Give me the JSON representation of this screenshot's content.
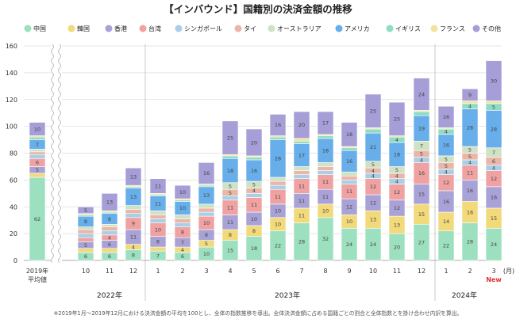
{
  "chart_data": {
    "type": "bar",
    "stacked": true,
    "title": "【インバウンド】国籍別の決済金額の推移",
    "ylim": [
      0,
      160
    ],
    "yticks": [
      0,
      20,
      40,
      60,
      80,
      100,
      120,
      140,
      160
    ],
    "grid": true,
    "legend_position": "top",
    "categories": [
      "2019年\n平均値",
      "10",
      "11",
      "12",
      "1",
      "2",
      "3",
      "4",
      "5",
      "6",
      "7",
      "8",
      "9",
      "10",
      "11",
      "12",
      "1",
      "2",
      "3"
    ],
    "category_labels": [
      "",
      "10",
      "11",
      "12",
      "1",
      "2",
      "3",
      "4",
      "5",
      "6",
      "7",
      "8",
      "9",
      "10",
      "11",
      "12",
      "1",
      "2",
      "3"
    ],
    "baseline_label_lines": [
      "2019年",
      "平均値"
    ],
    "month_unit": "(月)",
    "year_labels": [
      "2022年",
      "2023年",
      "2024年"
    ],
    "new_marker": "New",
    "series": [
      {
        "name": "中国",
        "color": "#9de0c0",
        "values": [
          62,
          6,
          6,
          8,
          7,
          6,
          10,
          15,
          18,
          22,
          28,
          32,
          24,
          24,
          20,
          27,
          22,
          28,
          24
        ]
      },
      {
        "name": "韓国",
        "color": "#f2d97a",
        "values": [
          3,
          3,
          3,
          4,
          3,
          4,
          5,
          8,
          8,
          10,
          11,
          10,
          10,
          13,
          13,
          15,
          14,
          16,
          15
        ]
      },
      {
        "name": "香港",
        "color": "#a9a2d6",
        "values": [
          5,
          5,
          6,
          11,
          8,
          7,
          8,
          11,
          10,
          10,
          11,
          11,
          12,
          12,
          12,
          15,
          16,
          16,
          16
        ]
      },
      {
        "name": "台湾",
        "color": "#f0a2a2",
        "values": [
          6,
          3,
          4,
          9,
          10,
          8,
          10,
          11,
          11,
          11,
          11,
          11,
          11,
          12,
          12,
          16,
          12,
          11,
          12
        ]
      },
      {
        "name": "シンガポール",
        "color": "#a9cfe6",
        "values": [
          3,
          3,
          3,
          3,
          3,
          3,
          3,
          3,
          3,
          3,
          3,
          3,
          3,
          4,
          4,
          4,
          4,
          4,
          4
        ]
      },
      {
        "name": "タイ",
        "color": "#e9b6a8",
        "values": [
          2,
          3,
          3,
          3,
          3,
          3,
          3,
          5,
          4,
          3,
          3,
          3,
          3,
          4,
          4,
          5,
          5,
          5,
          6
        ]
      },
      {
        "name": "オーストラリア",
        "color": "#cfe2c4",
        "values": [
          2,
          2,
          2,
          3,
          3,
          3,
          3,
          5,
          5,
          3,
          3,
          3,
          3,
          5,
          5,
          7,
          5,
          5,
          7
        ]
      },
      {
        "name": "アメリカ",
        "color": "#67aeea",
        "values": [
          7,
          8,
          8,
          13,
          11,
          10,
          13,
          18,
          16,
          28,
          17,
          18,
          16,
          21,
          18,
          19,
          16,
          28,
          28
        ]
      },
      {
        "name": "イギリス",
        "color": "#8fdcc4",
        "values": [
          2,
          1,
          1,
          1,
          1,
          1,
          1,
          2,
          2,
          2,
          2,
          2,
          2,
          3,
          4,
          3,
          4,
          4,
          5
        ]
      },
      {
        "name": "フランス",
        "color": "#f4e2a0",
        "values": [
          1,
          1,
          1,
          1,
          1,
          1,
          1,
          1,
          1,
          1,
          2,
          1,
          1,
          1,
          1,
          1,
          1,
          2,
          2
        ]
      },
      {
        "name": "その他",
        "color": "#a59ed7",
        "values": [
          10,
          5,
          13,
          13,
          11,
          10,
          16,
          25,
          20,
          16,
          20,
          17,
          18,
          25,
          25,
          24,
          16,
          9,
          30
        ]
      }
    ],
    "labeled_series": [
      "中国",
      "韓国",
      "香港",
      "台湾",
      "シンガポール",
      "タイ",
      "オーストラリア",
      "アメリカ",
      "イギリス",
      "その他"
    ]
  },
  "footnote": "※2019年1月〜2019年12月における決済金額の平均を100とし、全体の指数推移を導出。全体決済金額に占める国籍ごとの割合と全体指数とを掛け合わせ内訳を算出。"
}
